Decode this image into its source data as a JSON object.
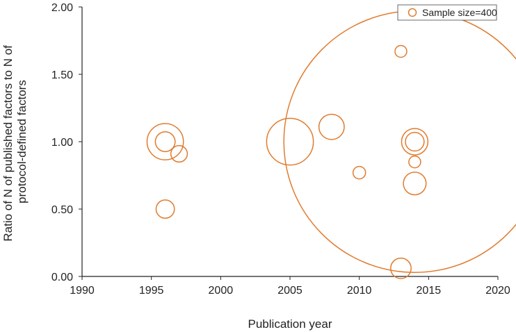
{
  "chart_data": {
    "type": "scatter",
    "subtype": "bubble",
    "title": "",
    "xlabel": "Publication year",
    "ylabel_lines": [
      "Ratio of N of published factors to N of",
      "protocol-defined factors"
    ],
    "xlim": [
      1990,
      2020
    ],
    "ylim": [
      0,
      2
    ],
    "x_ticks": [
      1990,
      1995,
      2000,
      2005,
      2010,
      2015,
      2020
    ],
    "x_tick_labels": [
      "1990",
      "1995",
      "2000",
      "2005",
      "2010",
      "2015",
      "2020"
    ],
    "y_ticks": [
      0,
      0.5,
      1,
      1.5,
      2
    ],
    "y_tick_labels": [
      "0.00",
      "0.50",
      "1.00",
      "1.50",
      "2.00"
    ],
    "grid": false,
    "legend": {
      "position": "top-right",
      "label": "Sample size=400",
      "marker_size": 400
    },
    "color": "#E07B2E",
    "points": [
      {
        "x": 1996,
        "y": 1.0,
        "size": 1900
      },
      {
        "x": 1996,
        "y": 1.0,
        "size": 560
      },
      {
        "x": 1996,
        "y": 0.5,
        "size": 480
      },
      {
        "x": 1997,
        "y": 0.91,
        "size": 390
      },
      {
        "x": 2005,
        "y": 1.0,
        "size": 3140
      },
      {
        "x": 2008,
        "y": 1.11,
        "size": 920
      },
      {
        "x": 2010,
        "y": 0.77,
        "size": 225
      },
      {
        "x": 2013,
        "y": 1.67,
        "size": 200
      },
      {
        "x": 2013,
        "y": 0.06,
        "size": 600
      },
      {
        "x": 2014,
        "y": 1.0,
        "size": 98400
      },
      {
        "x": 2014,
        "y": 1.0,
        "size": 1000
      },
      {
        "x": 2014,
        "y": 1.0,
        "size": 500
      },
      {
        "x": 2014,
        "y": 0.85,
        "size": 200
      },
      {
        "x": 2014,
        "y": 0.69,
        "size": 740
      }
    ]
  }
}
